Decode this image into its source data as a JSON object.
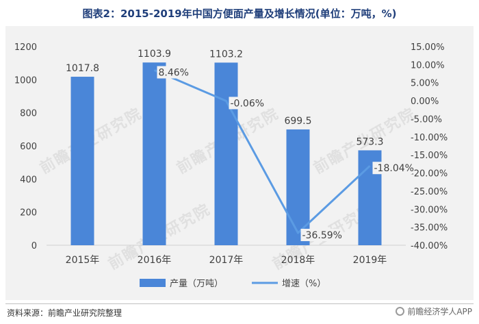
{
  "title": "图表2：2015-2019年中国方便面产量及增长情况(单位：万吨，%)",
  "source": "资料来源：前瞻产业研究院整理",
  "watermark_text": "前瞻经济学人APP",
  "background_watermark": "前瞻产业研究院",
  "colors": {
    "bar": "#4a86d8",
    "line": "#5b9be3",
    "panel": "#f2f2f2",
    "title": "#1f3e7a",
    "text": "#404040"
  },
  "chart_data": {
    "type": "bar",
    "title": "图表2：2015-2019年中国方便面产量及增长情况(单位：万吨，%)",
    "categories": [
      "2015年",
      "2016年",
      "2017年",
      "2018年",
      "2019年"
    ],
    "series": [
      {
        "name": "产量（万吨）",
        "type": "bar",
        "axis": "left",
        "values": [
          1017.8,
          1103.9,
          1103.2,
          699.5,
          573.3
        ],
        "labels": [
          "1017.8",
          "1103.9",
          "1103.2",
          "699.5",
          "573.3"
        ]
      },
      {
        "name": "增速（%）",
        "type": "line",
        "axis": "right",
        "values": [
          null,
          8.46,
          -0.06,
          -36.59,
          -18.04
        ],
        "labels": [
          "",
          "8.46%",
          "-0.06%",
          "-36.59%",
          "-18.04%"
        ]
      }
    ],
    "y_left": {
      "ylim": [
        0,
        1200
      ],
      "ticks": [
        0,
        200,
        400,
        600,
        800,
        1000,
        1200
      ],
      "tick_labels": [
        "0",
        "200",
        "400",
        "600",
        "800",
        "1000",
        "1200"
      ]
    },
    "y_right": {
      "ylim": [
        -40,
        15
      ],
      "ticks": [
        15,
        10,
        5,
        0,
        -5,
        -10,
        -15,
        -20,
        -25,
        -30,
        -35,
        -40
      ],
      "tick_labels": [
        "15.00%",
        "10.00%",
        "5.00%",
        "0.00%",
        "-5.00%",
        "-10.00%",
        "-15.00%",
        "-20.00%",
        "-25.00%",
        "-30.00%",
        "-35.00%",
        "-40.00%"
      ]
    },
    "grid": false,
    "legend_position": "bottom"
  }
}
